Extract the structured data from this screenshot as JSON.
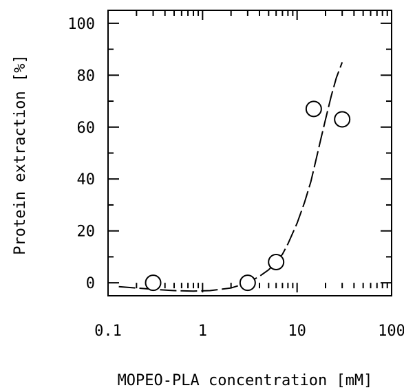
{
  "chart_data": {
    "type": "scatter",
    "title": "",
    "xlabel": "MOPEO-PLA concentration [mM]",
    "ylabel": "Protein extraction [%]",
    "xscale": "log",
    "xlim": [
      0.1,
      100
    ],
    "ylim": [
      -5,
      105
    ],
    "grid": false,
    "legend": "none",
    "x_tick_labels": [
      "0.1",
      "1",
      "10",
      "100"
    ],
    "x_ticks": [
      0.1,
      1,
      10,
      100
    ],
    "y_tick_labels": [
      "0",
      "20",
      "40",
      "60",
      "80",
      "100"
    ],
    "y_ticks": [
      0,
      20,
      40,
      60,
      80,
      100
    ],
    "points": {
      "x": [
        0.3,
        3,
        6,
        15,
        30
      ],
      "y": [
        0,
        0,
        8,
        67,
        63
      ]
    },
    "fit_curve": {
      "style": "solid-dashed",
      "x": [
        0.13,
        0.2,
        0.3,
        0.5,
        0.8,
        1.2,
        2,
        3,
        4,
        5,
        6,
        7,
        8,
        10,
        12,
        14,
        16,
        18,
        20,
        23,
        26,
        30
      ],
      "y": [
        -1.5,
        -2,
        -2.5,
        -3,
        -3.2,
        -3,
        -2,
        0,
        2.5,
        5,
        8,
        11,
        15,
        23,
        31,
        39,
        48,
        56,
        63,
        72,
        79,
        85
      ]
    },
    "colors": {
      "axis": "#000000",
      "marker_fill": "#ffffff",
      "marker_stroke": "#000000",
      "line": "#000000"
    }
  }
}
